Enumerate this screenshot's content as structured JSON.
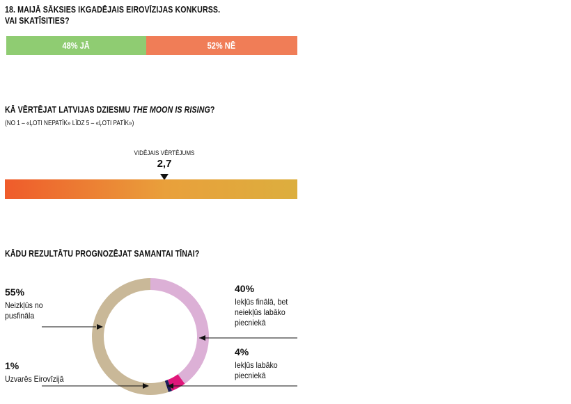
{
  "q18": {
    "title_line1": "18. MAIJĀ SĀKSIES IKGADĒJAIS EIROVĪZIJAS KONKURSS.",
    "title_line2": "VAI SKATĪSITIES?"
  },
  "q_moon": {
    "title_prefix": "KĀ VĒRTĒJAT LATVIJAS DZIESMU ",
    "title_song": "THE MOON IS RISING",
    "title_suffix": "?",
    "scale_note": "(NO 1 – «ĻOTI NEPATĪK» LĪDZ 5 – «ĻOTI PATĪK»)",
    "avg_caption": "VIDĒJAIS VĒRTĒJUMS",
    "avg_value": "2,7"
  },
  "q_result": {
    "title": "KĀDU REZULTĀTU PROGNOZĒJAT SAMANTAI TĪNAI?"
  },
  "chart_data": [
    {
      "type": "bar",
      "orientation": "horizontal-stacked",
      "segments": [
        {
          "label": "48% JĀ",
          "value": 48,
          "color": "#8fcc72"
        },
        {
          "label": "52% NĒ",
          "value": 52,
          "color": "#f07d57"
        }
      ]
    },
    {
      "type": "bar",
      "orientation": "gradient-scale",
      "scale_min": 1,
      "scale_max": 5,
      "average": 2.7,
      "gradient": [
        "#ef5b2b",
        "#e9a03b",
        "#dcae3e"
      ]
    },
    {
      "type": "pie",
      "style": "donut",
      "slices": [
        {
          "pct_label": "40%",
          "label_lines": [
            "Iekļūs finālā, bet",
            "neiekļūs labāko",
            "piecniekā"
          ],
          "value": 40,
          "color": "#dcb0d6"
        },
        {
          "pct_label": "4%",
          "label_lines": [
            "Iekļūs labāko",
            "piecniekā"
          ],
          "value": 4,
          "color": "#e0167a"
        },
        {
          "pct_label": "1%",
          "label_lines": [
            "Uzvarēs Eirovīzijā"
          ],
          "value": 1,
          "color": "#1d1f5a"
        },
        {
          "pct_label": "55%",
          "label_lines": [
            "Neizkļūs no",
            "pusfināla"
          ],
          "value": 55,
          "color": "#c9b898"
        }
      ]
    }
  ]
}
